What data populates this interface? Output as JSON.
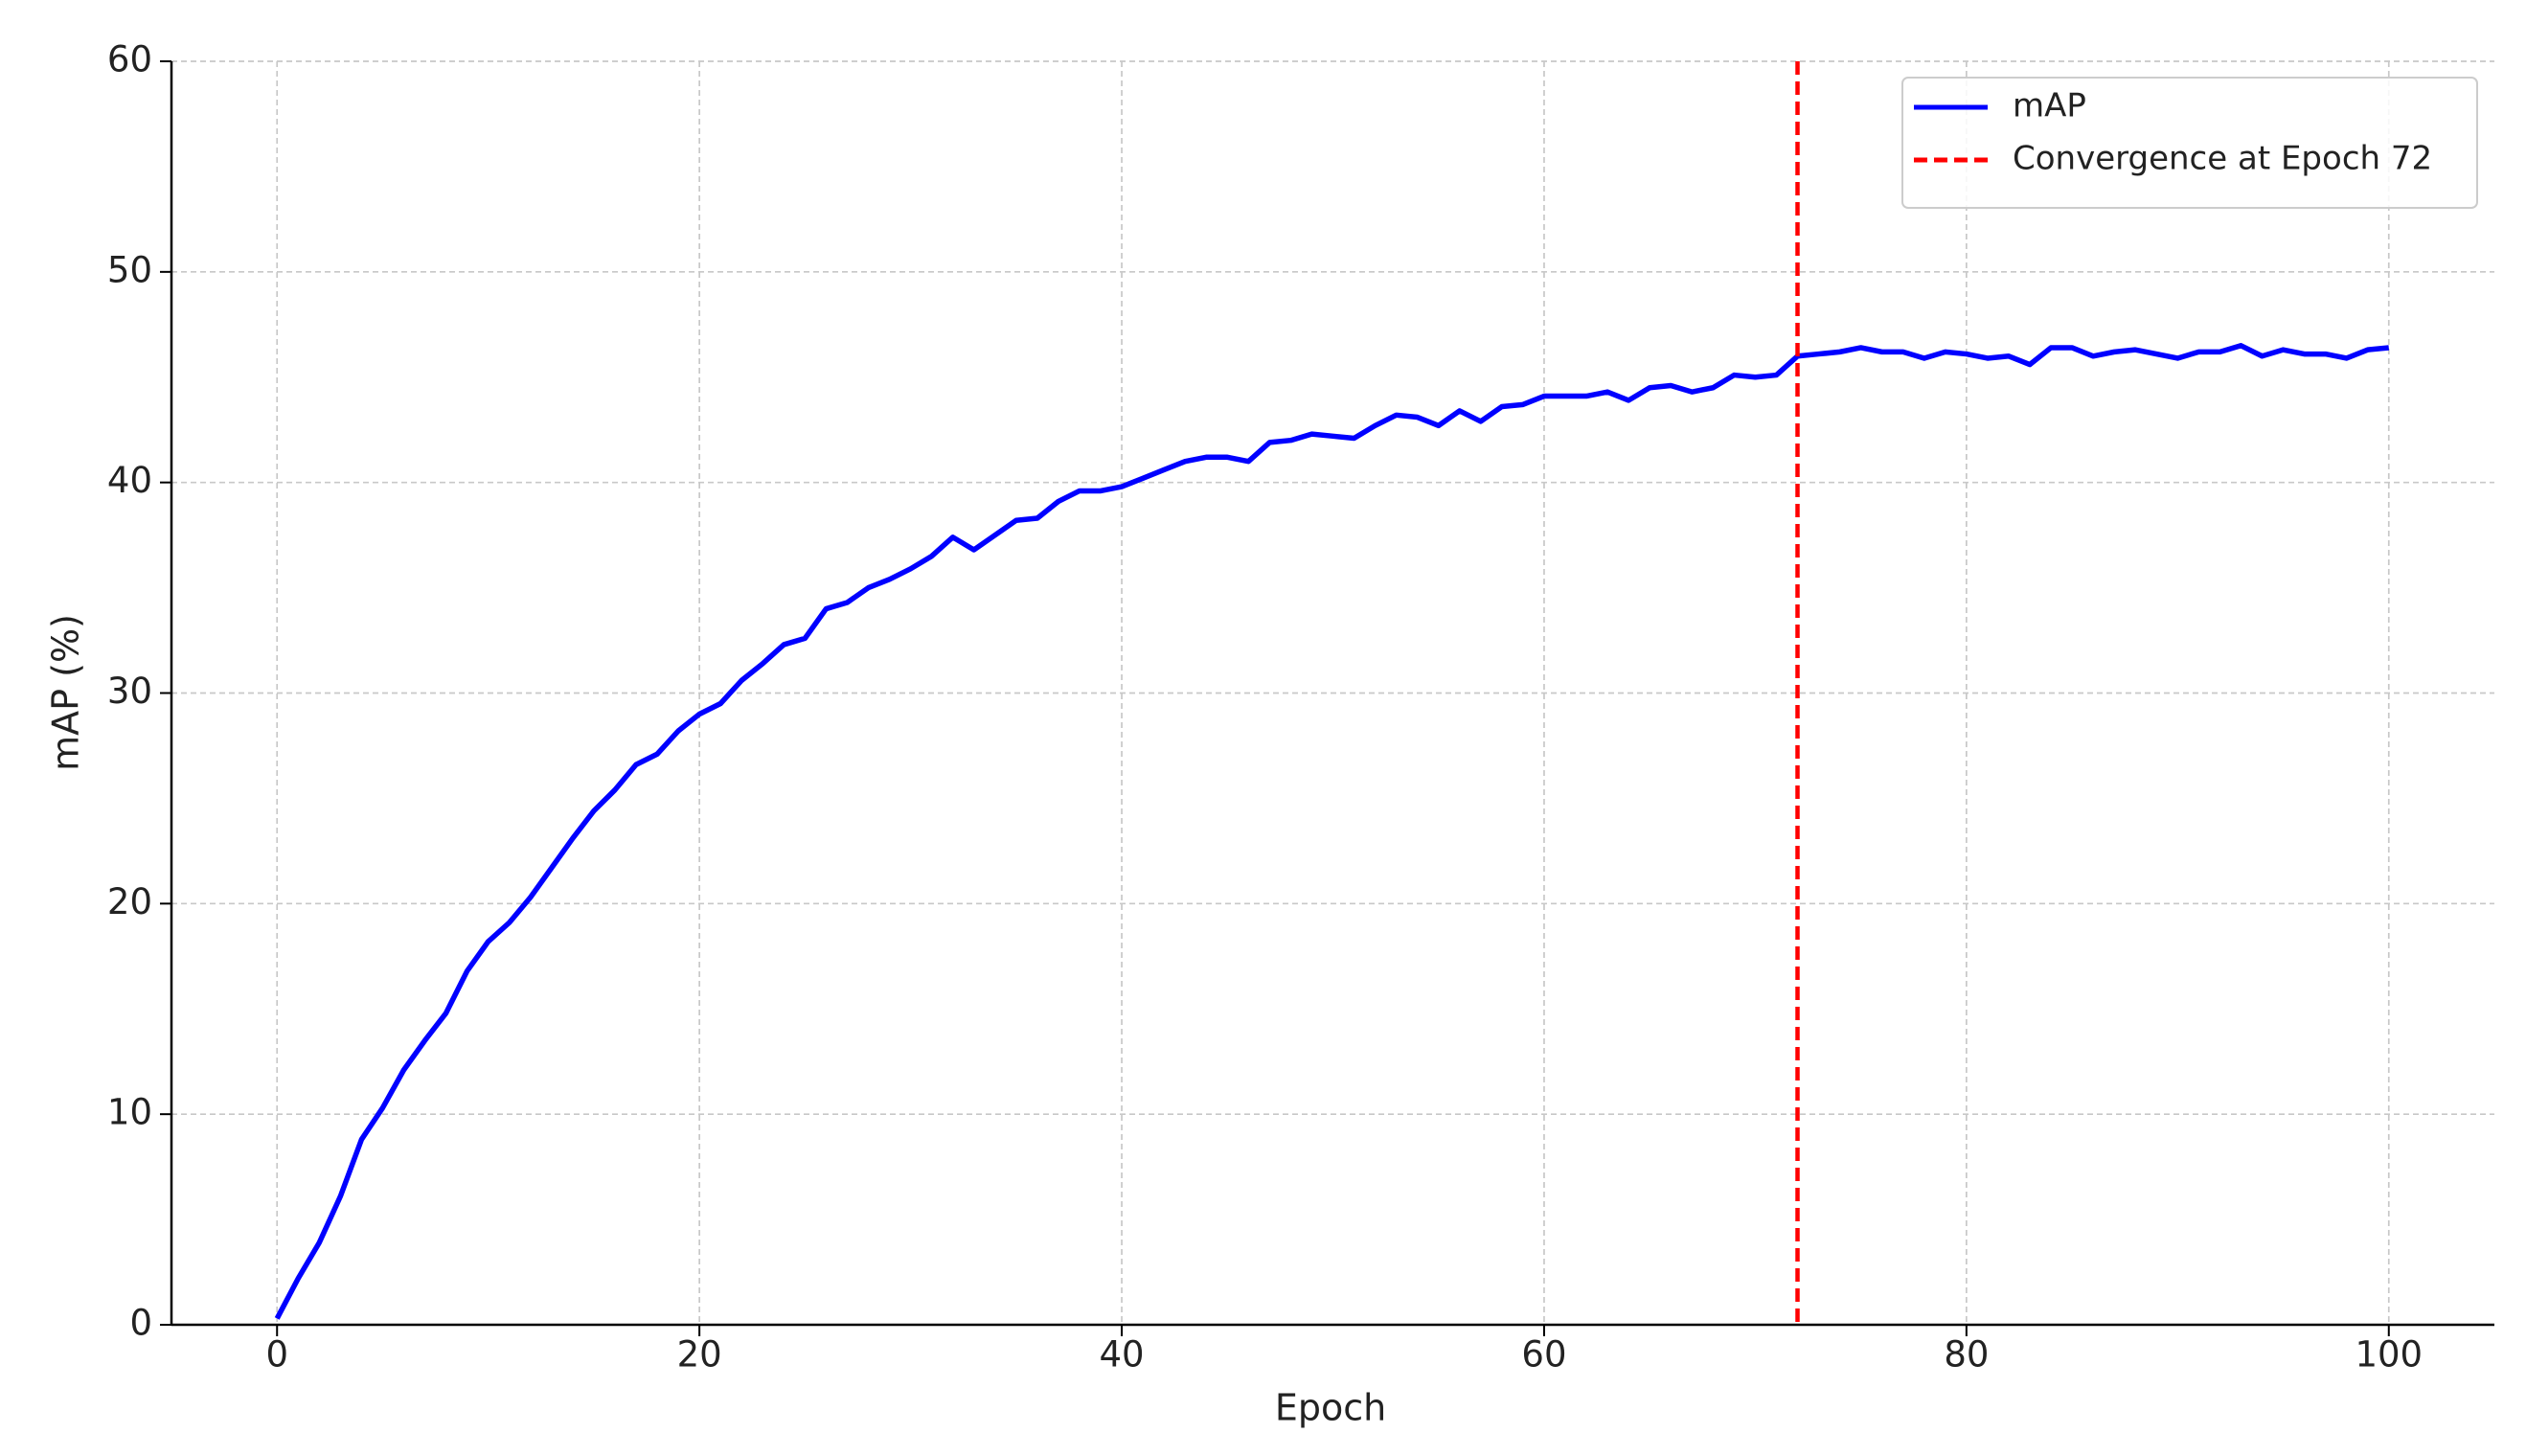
{
  "chart_data": {
    "type": "line",
    "xlabel": "Epoch",
    "ylabel": "mAP (%)",
    "x": [
      0,
      1,
      2,
      3,
      4,
      5,
      6,
      7,
      8,
      9,
      10,
      11,
      12,
      13,
      14,
      15,
      16,
      17,
      18,
      19,
      20,
      21,
      22,
      23,
      24,
      25,
      26,
      27,
      28,
      29,
      30,
      31,
      32,
      33,
      34,
      35,
      36,
      37,
      38,
      39,
      40,
      41,
      42,
      43,
      44,
      45,
      46,
      47,
      48,
      49,
      50,
      51,
      52,
      53,
      54,
      55,
      56,
      57,
      58,
      59,
      60,
      61,
      62,
      63,
      64,
      65,
      66,
      67,
      68,
      69,
      70,
      71,
      72,
      73,
      74,
      75,
      76,
      77,
      78,
      79,
      80,
      81,
      82,
      83,
      84,
      85,
      86,
      87,
      88,
      89,
      90,
      91,
      92,
      93,
      94,
      95,
      96,
      97,
      98,
      99,
      100
    ],
    "series": [
      {
        "name": "mAP",
        "color": "#0000ff",
        "values": [
          0.3,
          2.2,
          3.9,
          6.1,
          8.8,
          10.3,
          12.1,
          13.5,
          14.8,
          16.8,
          18.2,
          19.1,
          20.3,
          21.7,
          23.1,
          24.4,
          25.4,
          26.6,
          27.1,
          28.2,
          29.0,
          29.5,
          30.6,
          31.4,
          32.3,
          32.6,
          34.0,
          34.3,
          35.0,
          35.4,
          35.9,
          36.5,
          37.4,
          36.8,
          37.5,
          38.2,
          38.3,
          39.1,
          39.6,
          39.6,
          39.8,
          40.2,
          40.6,
          41.0,
          41.2,
          41.2,
          41.0,
          41.9,
          42.0,
          42.3,
          42.2,
          42.1,
          42.7,
          43.2,
          43.1,
          42.7,
          43.4,
          42.9,
          43.6,
          43.7,
          44.1,
          44.1,
          44.1,
          44.3,
          43.9,
          44.5,
          44.6,
          44.3,
          44.5,
          45.1,
          45.0,
          45.1,
          46.0,
          46.1,
          46.2,
          46.4,
          46.2,
          46.2,
          45.9,
          46.2,
          46.1,
          45.9,
          46.0,
          45.6,
          46.4,
          46.4,
          46.0,
          46.2,
          46.3,
          46.1,
          45.9,
          46.2,
          46.2,
          46.5,
          46.0,
          46.3,
          46.1,
          46.1,
          45.9,
          46.3,
          46.4
        ]
      }
    ],
    "vline": {
      "x": 72,
      "name": "Convergence at Epoch 72",
      "color": "#ff0000"
    },
    "xlim": [
      -5,
      105
    ],
    "ylim": [
      0,
      60
    ],
    "xticks": [
      0,
      20,
      40,
      60,
      80,
      100
    ],
    "yticks": [
      0,
      10,
      20,
      30,
      40,
      50,
      60
    ],
    "grid": true,
    "legend": "upper right"
  }
}
